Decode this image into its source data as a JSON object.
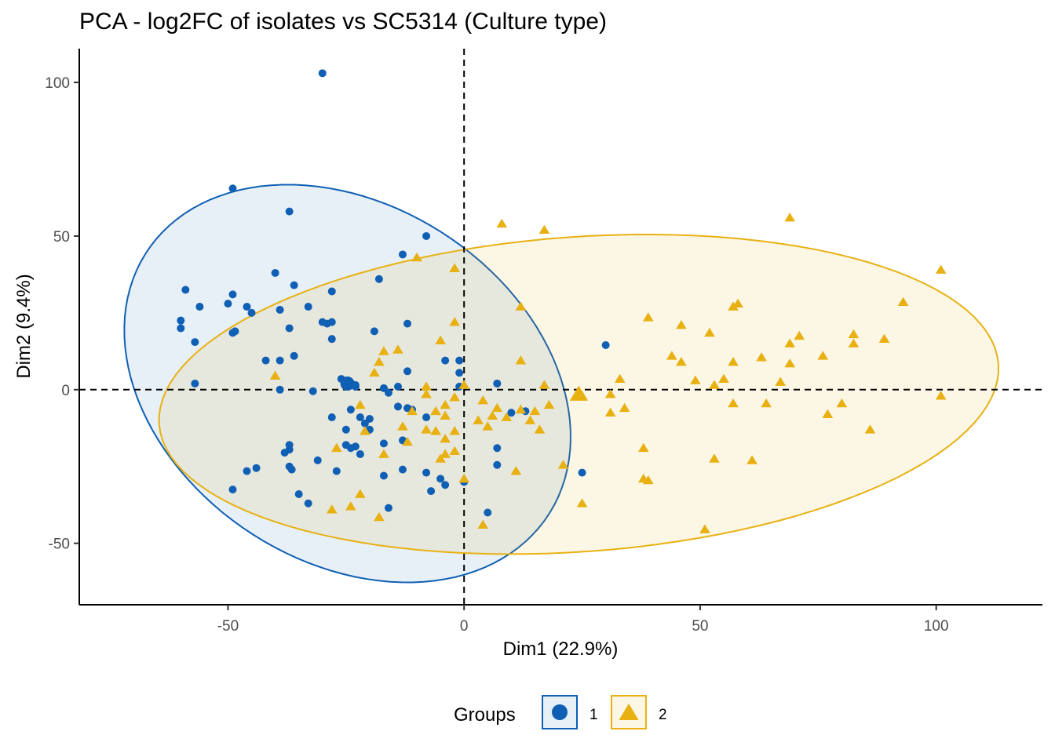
{
  "chart_data": {
    "type": "scatter",
    "title": "PCA - log2FC of isolates vs SC5314 (Culture type)",
    "xlabel": "Dim1 (22.9%)",
    "ylabel": "Dim2 (9.4%)",
    "xlim": [
      -81.5,
      122.5
    ],
    "ylim": [
      -70,
      111
    ],
    "xticks": [
      -50,
      0,
      50,
      100
    ],
    "yticks": [
      -50,
      0,
      50,
      100
    ],
    "xtick_labels": [
      "-50",
      "0",
      "50",
      "100"
    ],
    "ytick_labels": [
      "-50",
      "0",
      "50",
      "100"
    ],
    "reference_lines": {
      "x": 0,
      "y": 0,
      "style": "dashed"
    },
    "legend": {
      "title": "Groups",
      "position": "bottom"
    },
    "series": [
      {
        "name": "1",
        "color": "#0f5fb5",
        "marker": "circle",
        "centroid": [
          -24.7,
          2.0
        ],
        "ellipse": {
          "center": [
            -24.7,
            2.0
          ],
          "semi_axes": [
            67.0,
            44.0
          ],
          "angle_deg": -70
        },
        "points": [
          [
            -30,
            103
          ],
          [
            -49,
            65.5
          ],
          [
            -37,
            58
          ],
          [
            -8,
            50
          ],
          [
            -13,
            44
          ],
          [
            -59,
            32.5
          ],
          [
            -56,
            27
          ],
          [
            -49,
            31
          ],
          [
            -40,
            38
          ],
          [
            -36,
            34
          ],
          [
            -28,
            32
          ],
          [
            -18,
            36
          ],
          [
            -60,
            22.5
          ],
          [
            -60,
            20
          ],
          [
            -57,
            15.5
          ],
          [
            -50,
            28
          ],
          [
            -46,
            27
          ],
          [
            -45,
            25
          ],
          [
            -49,
            18.5
          ],
          [
            -48.5,
            19
          ],
          [
            -39,
            26
          ],
          [
            -33,
            27
          ],
          [
            -37,
            20
          ],
          [
            -30,
            22
          ],
          [
            -28,
            22
          ],
          [
            -29,
            21.5
          ],
          [
            -28,
            16.5
          ],
          [
            -12,
            21.5
          ],
          [
            -19,
            19
          ],
          [
            -42,
            9.5
          ],
          [
            -39,
            9.5
          ],
          [
            -36,
            11
          ],
          [
            -57,
            2
          ],
          [
            -39,
            0
          ],
          [
            -32,
            -0.5
          ],
          [
            -26,
            3.5
          ],
          [
            -24,
            2
          ],
          [
            -23,
            1.5
          ],
          [
            -23,
            1
          ],
          [
            -17,
            0.5
          ],
          [
            -14,
            1
          ],
          [
            -16,
            -1
          ],
          [
            -12,
            6
          ],
          [
            -4,
            9.5
          ],
          [
            -1,
            9.5
          ],
          [
            -1,
            5.5
          ],
          [
            -1,
            1
          ],
          [
            -24,
            -6.5
          ],
          [
            -28,
            -9
          ],
          [
            -20,
            -9.5
          ],
          [
            -22,
            -9
          ],
          [
            -21,
            -11
          ],
          [
            -14,
            -5.5
          ],
          [
            -12,
            -6
          ],
          [
            -11,
            -6.5
          ],
          [
            -8,
            -9
          ],
          [
            -25,
            -13
          ],
          [
            -20,
            -13
          ],
          [
            -37,
            -18
          ],
          [
            -37,
            -19.5
          ],
          [
            -38,
            -20.5
          ],
          [
            -24,
            -19
          ],
          [
            -25,
            -18
          ],
          [
            -23,
            -18.5
          ],
          [
            -17,
            -17.5
          ],
          [
            -13,
            -16.5
          ],
          [
            -22,
            -21
          ],
          [
            -31,
            -23
          ],
          [
            -37,
            -25
          ],
          [
            -36.5,
            -26
          ],
          [
            -46,
            -26.5
          ],
          [
            -44,
            -25.5
          ],
          [
            -27,
            -26.5
          ],
          [
            -17,
            -28
          ],
          [
            -13,
            -26
          ],
          [
            -8,
            -27
          ],
          [
            -5,
            -29
          ],
          [
            -4,
            -31
          ],
          [
            -49,
            -32.5
          ],
          [
            -35,
            -34
          ],
          [
            -33,
            -37
          ],
          [
            -16,
            -38.5
          ],
          [
            -7,
            -33
          ],
          [
            0,
            -30
          ],
          [
            5,
            -40
          ],
          [
            30,
            14.5
          ],
          [
            25,
            -27
          ],
          [
            7,
            2
          ],
          [
            7,
            -19
          ],
          [
            7,
            -24.5
          ],
          [
            10,
            -7.5
          ],
          [
            13,
            -7
          ]
        ]
      },
      {
        "name": "2",
        "color": "#e8b111",
        "marker": "triangle",
        "centroid": [
          24.3,
          -1.5
        ],
        "ellipse": {
          "center": [
            24.3,
            -1.5
          ],
          "semi_axes": [
            89.5,
            51.0
          ],
          "angle_deg": 8
        },
        "points": [
          [
            69,
            56
          ],
          [
            8,
            54
          ],
          [
            17,
            52
          ],
          [
            -10,
            43
          ],
          [
            -2,
            39.5
          ],
          [
            12,
            27
          ],
          [
            101,
            39
          ],
          [
            93,
            28.5
          ],
          [
            58,
            28
          ],
          [
            57,
            27
          ],
          [
            39,
            23.5
          ],
          [
            46,
            21
          ],
          [
            52,
            18.5
          ],
          [
            71,
            17.5
          ],
          [
            82.5,
            18
          ],
          [
            82.5,
            15
          ],
          [
            89,
            16.5
          ],
          [
            69,
            15
          ],
          [
            76,
            11
          ],
          [
            63,
            10.5
          ],
          [
            44,
            11
          ],
          [
            46,
            9
          ],
          [
            57,
            9
          ],
          [
            69,
            8.5
          ],
          [
            -2,
            22
          ],
          [
            -5,
            16
          ],
          [
            -17,
            12.5
          ],
          [
            -14,
            13
          ],
          [
            -18,
            9
          ],
          [
            12,
            9.5
          ],
          [
            -40,
            4.5
          ],
          [
            -19,
            5.5
          ],
          [
            33,
            3.5
          ],
          [
            49,
            3
          ],
          [
            55,
            3.5
          ],
          [
            53,
            1.5
          ],
          [
            67,
            2.5
          ],
          [
            101,
            -2
          ],
          [
            24,
            -2
          ],
          [
            25,
            -2
          ],
          [
            31,
            -1.5
          ],
          [
            0,
            1.5
          ],
          [
            17,
            1.5
          ],
          [
            -8,
            1
          ],
          [
            -8,
            -1.5
          ],
          [
            -2,
            -2.5
          ],
          [
            4,
            -3.5
          ],
          [
            -4,
            -5
          ],
          [
            -6,
            -7
          ],
          [
            -4,
            -8.5
          ],
          [
            -22,
            -5
          ],
          [
            -11,
            -7
          ],
          [
            7,
            -6
          ],
          [
            12,
            -6.5
          ],
          [
            15,
            -7
          ],
          [
            18,
            -5
          ],
          [
            31,
            -7.5
          ],
          [
            34,
            -6
          ],
          [
            57,
            -4.5
          ],
          [
            64,
            -4.5
          ],
          [
            77,
            -8
          ],
          [
            80,
            -4.5
          ],
          [
            86,
            -13
          ],
          [
            3,
            -10
          ],
          [
            6,
            -8.5
          ],
          [
            9,
            -9
          ],
          [
            14,
            -10
          ],
          [
            -13,
            -12
          ],
          [
            -8,
            -13
          ],
          [
            -6,
            -13.5
          ],
          [
            -2,
            -13.5
          ],
          [
            -4,
            -16
          ],
          [
            5,
            -12
          ],
          [
            16,
            -13
          ],
          [
            -12,
            -17
          ],
          [
            -4,
            -21
          ],
          [
            -5,
            -22.5
          ],
          [
            -17,
            -21
          ],
          [
            -21,
            -13.5
          ],
          [
            -27,
            -19
          ],
          [
            -2,
            -20
          ],
          [
            38,
            -19
          ],
          [
            53,
            -22.5
          ],
          [
            61,
            -23
          ],
          [
            21,
            -24.5
          ],
          [
            11,
            -26.5
          ],
          [
            38,
            -29
          ],
          [
            39,
            -29.5
          ],
          [
            0,
            -29
          ],
          [
            -22,
            -34
          ],
          [
            -24,
            -38
          ],
          [
            -28,
            -39
          ],
          [
            -18,
            -41.5
          ],
          [
            25,
            -37
          ],
          [
            4,
            -44
          ],
          [
            51,
            -45.5
          ]
        ]
      }
    ]
  }
}
